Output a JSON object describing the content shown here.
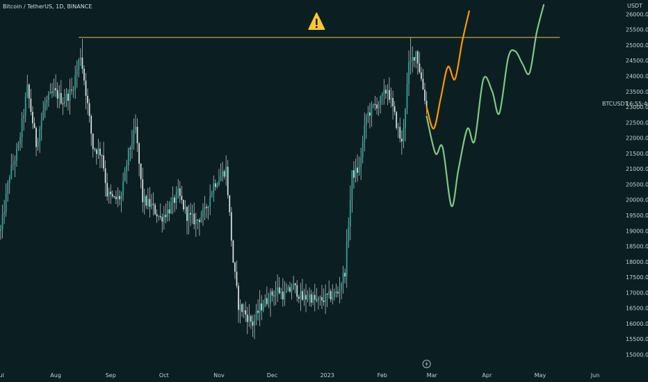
{
  "chart_data": {
    "type": "candlestick",
    "title": "Bitcoin / TetherUS, 1D, BINANCE",
    "ylabel": "USDT",
    "ylim": [
      14750,
      26350
    ],
    "y_ticks": [
      15000,
      15500,
      16000,
      16500,
      17000,
      17500,
      18000,
      18500,
      19000,
      19500,
      20000,
      20500,
      21000,
      21500,
      22000,
      22500,
      23000,
      23500,
      24000,
      24500,
      25000,
      25500,
      26000
    ],
    "x_ticks": [
      {
        "label": "Jul",
        "day": 0
      },
      {
        "label": "Aug",
        "day": 31
      },
      {
        "label": "Sep",
        "day": 62
      },
      {
        "label": "Oct",
        "day": 92
      },
      {
        "label": "Nov",
        "day": 123
      },
      {
        "label": "Dec",
        "day": 153
      },
      {
        "label": "2023",
        "day": 184
      },
      {
        "label": "Feb",
        "day": 215
      },
      {
        "label": "Mar",
        "day": 243
      },
      {
        "label": "Apr",
        "day": 274
      },
      {
        "label": "May",
        "day": 304
      },
      {
        "label": "Jun",
        "day": 335
      }
    ],
    "symbol_label": "BTCUSDT",
    "countdown_label": "16:55:46",
    "resistance_level": 25250,
    "warning_icon": "warning-icon",
    "lightning_icon": "lightning-icon",
    "price_path": [
      [
        0,
        19000
      ],
      [
        5,
        20800
      ],
      [
        10,
        21700
      ],
      [
        15,
        23600
      ],
      [
        20,
        21800
      ],
      [
        25,
        23100
      ],
      [
        30,
        23500
      ],
      [
        35,
        23200
      ],
      [
        40,
        23500
      ],
      [
        45,
        24700
      ],
      [
        48,
        23500
      ],
      [
        52,
        21700
      ],
      [
        57,
        21500
      ],
      [
        60,
        20200
      ],
      [
        64,
        20000
      ],
      [
        68,
        20100
      ],
      [
        72,
        21500
      ],
      [
        76,
        22300
      ],
      [
        80,
        20000
      ],
      [
        85,
        19800
      ],
      [
        90,
        19400
      ],
      [
        95,
        19700
      ],
      [
        100,
        20200
      ],
      [
        105,
        19500
      ],
      [
        110,
        19300
      ],
      [
        115,
        19600
      ],
      [
        120,
        20500
      ],
      [
        123,
        20700
      ],
      [
        127,
        21000
      ],
      [
        131,
        18000
      ],
      [
        134,
        16600
      ],
      [
        138,
        16300
      ],
      [
        142,
        16000
      ],
      [
        146,
        16500
      ],
      [
        152,
        16900
      ],
      [
        156,
        17100
      ],
      [
        160,
        16900
      ],
      [
        165,
        17200
      ],
      [
        170,
        16800
      ],
      [
        174,
        16900
      ],
      [
        178,
        16700
      ],
      [
        182,
        16800
      ],
      [
        186,
        16900
      ],
      [
        190,
        17000
      ],
      [
        194,
        17700
      ],
      [
        198,
        20800
      ],
      [
        202,
        21000
      ],
      [
        206,
        22700
      ],
      [
        210,
        23000
      ],
      [
        214,
        23200
      ],
      [
        218,
        23600
      ],
      [
        222,
        22700
      ],
      [
        226,
        21800
      ],
      [
        230,
        24300
      ],
      [
        234,
        24800
      ],
      [
        238,
        23600
      ],
      [
        240,
        23000
      ]
    ],
    "price_extremes": {
      "high_day": 46,
      "high": 25200,
      "low_day": 143,
      "low": 15500,
      "feb_high_day": 231,
      "feb_high": 25250
    },
    "series": [
      {
        "color": "#ff9800",
        "points": [
          [
            240,
            23000
          ],
          [
            244,
            22300
          ],
          [
            248,
            23300
          ],
          [
            252,
            24300
          ],
          [
            256,
            23900
          ],
          [
            260,
            25100
          ],
          [
            264,
            26100
          ]
        ]
      },
      {
        "color": "#81c784",
        "points": [
          [
            240,
            22700
          ],
          [
            245,
            21500
          ],
          [
            249,
            21700
          ],
          [
            254,
            19800
          ],
          [
            258,
            21000
          ],
          [
            263,
            22300
          ],
          [
            267,
            21900
          ],
          [
            272,
            23900
          ],
          [
            277,
            23500
          ],
          [
            281,
            22800
          ],
          [
            286,
            24600
          ],
          [
            290,
            24800
          ],
          [
            294,
            24400
          ],
          [
            298,
            24100
          ],
          [
            302,
            25400
          ],
          [
            306,
            26300
          ]
        ]
      }
    ],
    "colors": {
      "background": "#0b1f22",
      "candle": "#26a69a",
      "candle_wick": "#d6dcdc",
      "resistance": "#f0c040",
      "axis_text": "#c8d0d0"
    }
  }
}
